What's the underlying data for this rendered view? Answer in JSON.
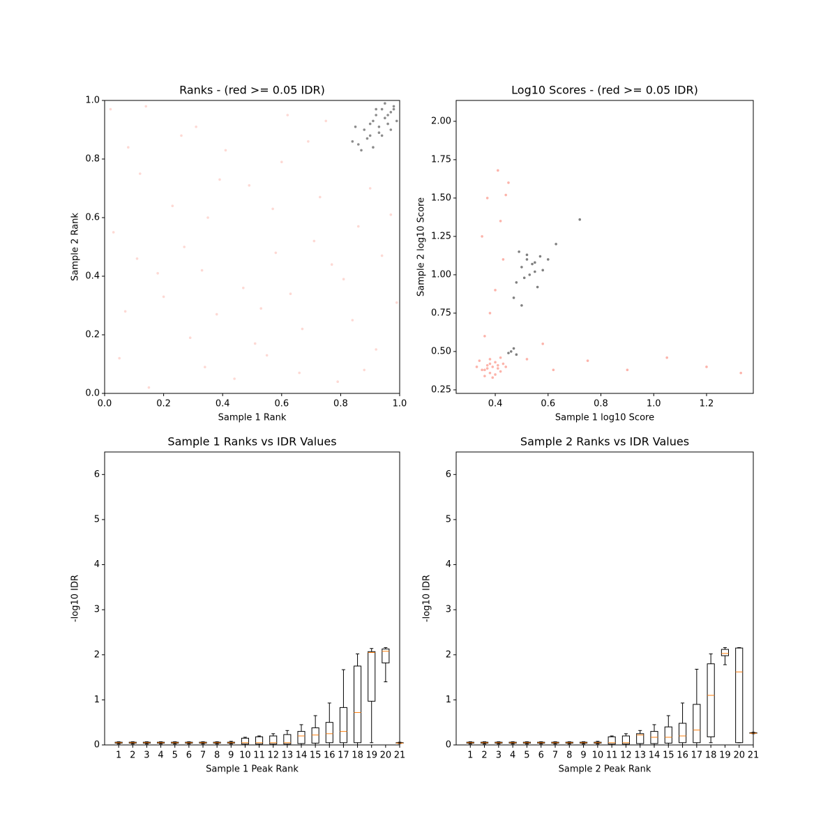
{
  "chart_data": [
    {
      "type": "scatter",
      "title": "Ranks - (red >= 0.05 IDR)",
      "x_label": "Sample 1 Rank",
      "y_label": "Sample 2 Rank",
      "xlim": [
        0,
        1
      ],
      "ylim": [
        0,
        1
      ],
      "xticks": [
        {
          "value": 0,
          "label": "0.0"
        },
        0.2,
        0.4,
        0.6,
        0.8,
        {
          "value": 1,
          "label": "1.0"
        }
      ],
      "yticks": [
        {
          "value": 0,
          "label": "0.0"
        },
        0.2,
        0.4,
        0.6,
        0.8,
        {
          "value": 1,
          "label": "1.0"
        }
      ],
      "series": [
        {
          "color": "#fa8072",
          "alpha": 0.3,
          "x": [
            0.05,
            0.12,
            0.2,
            0.31,
            0.44,
            0.58,
            0.67,
            0.73,
            0.81,
            0.92,
            0.03,
            0.15,
            0.26,
            0.38,
            0.49,
            0.55,
            0.62,
            0.77,
            0.88,
            0.97,
            0.08,
            0.18,
            0.29,
            0.35,
            0.47,
            0.6,
            0.71,
            0.84,
            0.9,
            0.99,
            0.02,
            0.11,
            0.23,
            0.34,
            0.41,
            0.53,
            0.66,
            0.75,
            0.86,
            0.94,
            0.07,
            0.14,
            0.27,
            0.39,
            0.51,
            0.63,
            0.69,
            0.79,
            0.57,
            0.33
          ],
          "values": [
            0.12,
            0.75,
            0.33,
            0.91,
            0.05,
            0.48,
            0.22,
            0.67,
            0.39,
            0.15,
            0.55,
            0.02,
            0.88,
            0.27,
            0.71,
            0.13,
            0.95,
            0.44,
            0.08,
            0.61,
            0.84,
            0.41,
            0.19,
            0.6,
            0.36,
            0.79,
            0.52,
            0.25,
            0.7,
            0.31,
            0.97,
            0.46,
            0.64,
            0.09,
            0.83,
            0.29,
            0.07,
            0.93,
            0.57,
            0.47,
            0.28,
            0.98,
            0.5,
            0.73,
            0.17,
            0.34,
            0.86,
            0.04,
            0.63,
            0.42
          ]
        },
        {
          "color": "#000000",
          "alpha": 0.45,
          "x": [
            0.84,
            0.86,
            0.88,
            0.9,
            0.91,
            0.92,
            0.93,
            0.94,
            0.95,
            0.96,
            0.97,
            0.98,
            0.99,
            0.87,
            0.89,
            0.93,
            0.95,
            0.97,
            0.92,
            0.85,
            0.9,
            0.96,
            0.98,
            0.94,
            0.91
          ],
          "values": [
            0.86,
            0.85,
            0.9,
            0.88,
            0.93,
            0.95,
            0.91,
            0.97,
            0.94,
            0.92,
            0.96,
            0.98,
            0.93,
            0.83,
            0.87,
            0.89,
            0.99,
            0.9,
            0.97,
            0.91,
            0.92,
            0.95,
            0.97,
            0.88,
            0.84
          ]
        }
      ]
    },
    {
      "type": "scatter",
      "title": "Log10 Scores - (red >= 0.05 IDR)",
      "x_label": "Sample 1 log10 Score",
      "y_label": "Sample 2 log10 Score",
      "xlim": [
        0.252,
        1.377
      ],
      "ylim": [
        0.227,
        2.136
      ],
      "xticks": [
        0.4,
        0.6,
        0.8,
        {
          "value": 1,
          "label": "1.0"
        },
        1.2
      ],
      "yticks": [
        0.25,
        {
          "value": 0.5,
          "label": "0.50"
        },
        0.75,
        {
          "value": 1,
          "label": "1.00"
        },
        1.25,
        {
          "value": 1.5,
          "label": "1.50"
        },
        1.75,
        {
          "value": 2,
          "label": "2.00"
        }
      ],
      "series": [
        {
          "color": "#fa8072",
          "alpha": 0.6,
          "x": [
            0.35,
            0.37,
            0.38,
            0.4,
            0.41,
            0.39,
            0.36,
            0.42,
            0.43,
            0.33,
            0.38,
            0.4,
            0.37,
            0.44,
            0.34,
            0.39,
            0.41,
            0.36,
            0.42,
            0.38,
            0.36,
            0.38,
            0.4,
            0.43,
            0.35,
            0.42,
            0.37,
            0.45,
            0.44,
            0.41,
            0.52,
            0.62,
            0.75,
            0.9,
            1.05,
            1.2,
            1.33,
            0.58
          ],
          "values": [
            0.38,
            0.41,
            0.36,
            0.43,
            0.39,
            0.4,
            0.34,
            0.37,
            0.42,
            0.4,
            0.45,
            0.35,
            0.39,
            0.4,
            0.44,
            0.33,
            0.41,
            0.38,
            0.46,
            0.42,
            0.6,
            0.75,
            0.9,
            1.1,
            1.25,
            1.35,
            1.5,
            1.6,
            1.52,
            1.68,
            0.45,
            0.38,
            0.44,
            0.38,
            0.46,
            0.4,
            0.36,
            0.55
          ]
        },
        {
          "color": "#000000",
          "alpha": 0.5,
          "x": [
            0.48,
            0.5,
            0.52,
            0.53,
            0.55,
            0.57,
            0.58,
            0.49,
            0.51,
            0.54,
            0.56,
            0.6,
            0.47,
            0.52,
            0.55,
            0.5,
            0.45,
            0.46,
            0.47,
            0.48,
            0.72,
            0.63
          ],
          "values": [
            0.95,
            1.05,
            1.1,
            1.0,
            1.08,
            1.12,
            1.03,
            1.15,
            0.98,
            1.07,
            0.92,
            1.1,
            0.85,
            1.13,
            1.02,
            0.8,
            0.49,
            0.5,
            0.52,
            0.48,
            1.36,
            1.2
          ]
        }
      ]
    },
    {
      "type": "box",
      "title": "Sample 1 Ranks vs IDR Values",
      "x_label": "Sample 1 Peak Rank",
      "y_label": "-log10 IDR",
      "xlim": [
        0,
        21
      ],
      "ylim": [
        0,
        6.5
      ],
      "xticks": [
        1,
        2,
        3,
        4,
        5,
        6,
        7,
        8,
        9,
        10,
        11,
        12,
        13,
        14,
        15,
        16,
        17,
        18,
        19,
        20,
        21
      ],
      "yticks": [
        0,
        1,
        2,
        3,
        4,
        5,
        6
      ],
      "box_color": "#000000",
      "median_color": "#ff7f0e",
      "boxes": [
        {
          "x": 1,
          "whislo": 0.02,
          "q1": 0.04,
          "med": 0.05,
          "q3": 0.06,
          "whishi": 0.07
        },
        {
          "x": 2,
          "whislo": 0.02,
          "q1": 0.04,
          "med": 0.05,
          "q3": 0.06,
          "whishi": 0.07
        },
        {
          "x": 3,
          "whislo": 0.02,
          "q1": 0.04,
          "med": 0.05,
          "q3": 0.06,
          "whishi": 0.07
        },
        {
          "x": 4,
          "whislo": 0.02,
          "q1": 0.04,
          "med": 0.05,
          "q3": 0.06,
          "whishi": 0.07
        },
        {
          "x": 5,
          "whislo": 0.02,
          "q1": 0.04,
          "med": 0.05,
          "q3": 0.06,
          "whishi": 0.07
        },
        {
          "x": 6,
          "whislo": 0.02,
          "q1": 0.04,
          "med": 0.05,
          "q3": 0.06,
          "whishi": 0.07
        },
        {
          "x": 7,
          "whislo": 0.02,
          "q1": 0.04,
          "med": 0.05,
          "q3": 0.06,
          "whishi": 0.07
        },
        {
          "x": 8,
          "whislo": 0.02,
          "q1": 0.04,
          "med": 0.05,
          "q3": 0.06,
          "whishi": 0.07
        },
        {
          "x": 9,
          "whislo": 0.02,
          "q1": 0.04,
          "med": 0.05,
          "q3": 0.06,
          "whishi": 0.08
        },
        {
          "x": 10,
          "whislo": 0,
          "q1": 0.02,
          "med": 0.05,
          "q3": 0.15,
          "whishi": 0.17
        },
        {
          "x": 11,
          "whislo": 0,
          "q1": 0.02,
          "med": 0.05,
          "q3": 0.18,
          "whishi": 0.2
        },
        {
          "x": 12,
          "whislo": 0,
          "q1": 0.02,
          "med": 0.05,
          "q3": 0.2,
          "whishi": 0.25
        },
        {
          "x": 13,
          "whislo": 0,
          "q1": 0.02,
          "med": 0.05,
          "q3": 0.23,
          "whishi": 0.32
        },
        {
          "x": 14,
          "whislo": 0,
          "q1": 0.03,
          "med": 0.2,
          "q3": 0.3,
          "whishi": 0.45
        },
        {
          "x": 15,
          "whislo": 0,
          "q1": 0.04,
          "med": 0.22,
          "q3": 0.38,
          "whishi": 0.65
        },
        {
          "x": 16,
          "whislo": 0,
          "q1": 0.05,
          "med": 0.25,
          "q3": 0.5,
          "whishi": 0.93
        },
        {
          "x": 17,
          "whislo": 0,
          "q1": 0.05,
          "med": 0.3,
          "q3": 0.83,
          "whishi": 1.67
        },
        {
          "x": 18,
          "whislo": 0,
          "q1": 0.05,
          "med": 0.72,
          "q3": 1.75,
          "whishi": 2.02
        },
        {
          "x": 19,
          "whislo": 0.05,
          "q1": 0.97,
          "med": 2.05,
          "q3": 2.07,
          "whishi": 2.14
        },
        {
          "x": 20,
          "whislo": 1.4,
          "q1": 1.82,
          "med": 2.08,
          "q3": 2.13,
          "whishi": 2.16
        },
        {
          "x": 21,
          "whislo": 0.03,
          "q1": 0.04,
          "med": 0.04,
          "q3": 0.05,
          "whishi": 0.06
        }
      ]
    },
    {
      "type": "box",
      "title": "Sample 2 Ranks vs IDR Values",
      "x_label": "Sample 2 Peak Rank",
      "y_label": "-log10 IDR",
      "xlim": [
        0,
        21
      ],
      "ylim": [
        0,
        6.5
      ],
      "xticks": [
        1,
        2,
        3,
        4,
        5,
        6,
        7,
        8,
        9,
        10,
        11,
        12,
        13,
        14,
        15,
        16,
        17,
        18,
        19,
        20,
        21
      ],
      "yticks": [
        0,
        1,
        2,
        3,
        4,
        5,
        6
      ],
      "box_color": "#000000",
      "median_color": "#ff7f0e",
      "boxes": [
        {
          "x": 1,
          "whislo": 0.02,
          "q1": 0.04,
          "med": 0.05,
          "q3": 0.06,
          "whishi": 0.07
        },
        {
          "x": 2,
          "whislo": 0.02,
          "q1": 0.04,
          "med": 0.05,
          "q3": 0.06,
          "whishi": 0.07
        },
        {
          "x": 3,
          "whislo": 0.02,
          "q1": 0.04,
          "med": 0.05,
          "q3": 0.06,
          "whishi": 0.07
        },
        {
          "x": 4,
          "whislo": 0.02,
          "q1": 0.04,
          "med": 0.05,
          "q3": 0.06,
          "whishi": 0.07
        },
        {
          "x": 5,
          "whislo": 0.02,
          "q1": 0.04,
          "med": 0.05,
          "q3": 0.06,
          "whishi": 0.07
        },
        {
          "x": 6,
          "whislo": 0.02,
          "q1": 0.04,
          "med": 0.05,
          "q3": 0.06,
          "whishi": 0.07
        },
        {
          "x": 7,
          "whislo": 0.02,
          "q1": 0.04,
          "med": 0.05,
          "q3": 0.06,
          "whishi": 0.07
        },
        {
          "x": 8,
          "whislo": 0.02,
          "q1": 0.04,
          "med": 0.05,
          "q3": 0.06,
          "whishi": 0.07
        },
        {
          "x": 9,
          "whislo": 0.02,
          "q1": 0.04,
          "med": 0.05,
          "q3": 0.06,
          "whishi": 0.07
        },
        {
          "x": 10,
          "whislo": 0.02,
          "q1": 0.04,
          "med": 0.05,
          "q3": 0.06,
          "whishi": 0.08
        },
        {
          "x": 11,
          "whislo": 0,
          "q1": 0.02,
          "med": 0.05,
          "q3": 0.18,
          "whishi": 0.2
        },
        {
          "x": 12,
          "whislo": 0,
          "q1": 0.02,
          "med": 0.05,
          "q3": 0.2,
          "whishi": 0.25
        },
        {
          "x": 13,
          "whislo": 0,
          "q1": 0.03,
          "med": 0.22,
          "q3": 0.25,
          "whishi": 0.32
        },
        {
          "x": 14,
          "whislo": 0,
          "q1": 0.03,
          "med": 0.17,
          "q3": 0.3,
          "whishi": 0.45
        },
        {
          "x": 15,
          "whislo": 0,
          "q1": 0.04,
          "med": 0.17,
          "q3": 0.4,
          "whishi": 0.65
        },
        {
          "x": 16,
          "whislo": 0,
          "q1": 0.05,
          "med": 0.2,
          "q3": 0.48,
          "whishi": 0.93
        },
        {
          "x": 17,
          "whislo": 0,
          "q1": 0.05,
          "med": 0.33,
          "q3": 0.9,
          "whishi": 1.68
        },
        {
          "x": 18,
          "whislo": 0.05,
          "q1": 0.18,
          "med": 1.1,
          "q3": 1.8,
          "whishi": 2.02
        },
        {
          "x": 19,
          "whislo": 1.78,
          "q1": 1.98,
          "med": 2.03,
          "q3": 2.12,
          "whishi": 2.16
        },
        {
          "x": 20,
          "whislo": 0.05,
          "q1": 0.05,
          "med": 1.62,
          "q3": 2.15,
          "whishi": 2.16
        },
        {
          "x": 21,
          "whislo": 0.25,
          "q1": 0.26,
          "med": 0.26,
          "q3": 0.27,
          "whishi": 0.28
        }
      ]
    }
  ]
}
